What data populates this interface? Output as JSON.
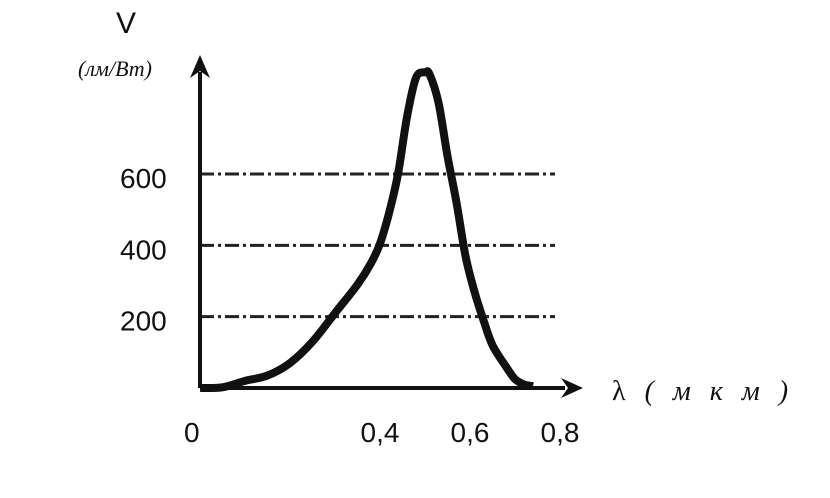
{
  "chart_data": {
    "type": "line",
    "title": "",
    "ylabel": "V",
    "ylabel_unit": "(лм/Вт)",
    "xlabel_symbol": "λ",
    "xlabel_unit": "( м к м )",
    "origin_label": "0",
    "xlim": [
      0,
      0.8
    ],
    "ylim": [
      0,
      900
    ],
    "x_ticks": [
      {
        "value": 0.4,
        "label": "0,4"
      },
      {
        "value": 0.6,
        "label": "0,6"
      },
      {
        "value": 0.8,
        "label": "0,8"
      }
    ],
    "y_ticks": [
      {
        "value": 200,
        "label": "200"
      },
      {
        "value": 400,
        "label": "400"
      },
      {
        "value": 600,
        "label": "600"
      }
    ],
    "reference_lines": [
      200,
      400,
      600
    ],
    "grid": false,
    "series": [
      {
        "x": [
          0.0,
          0.05,
          0.1,
          0.15,
          0.2,
          0.25,
          0.3,
          0.35,
          0.38,
          0.4,
          0.42,
          0.44,
          0.46,
          0.48,
          0.5,
          0.51,
          0.53,
          0.55,
          0.57,
          0.59,
          0.61,
          0.63,
          0.65,
          0.68,
          0.7,
          0.72,
          0.74
        ],
        "values": [
          0,
          2,
          20,
          35,
          70,
          130,
          210,
          290,
          350,
          405,
          490,
          600,
          760,
          870,
          885,
          880,
          800,
          650,
          520,
          370,
          270,
          190,
          120,
          60,
          25,
          10,
          5
        ]
      }
    ]
  }
}
